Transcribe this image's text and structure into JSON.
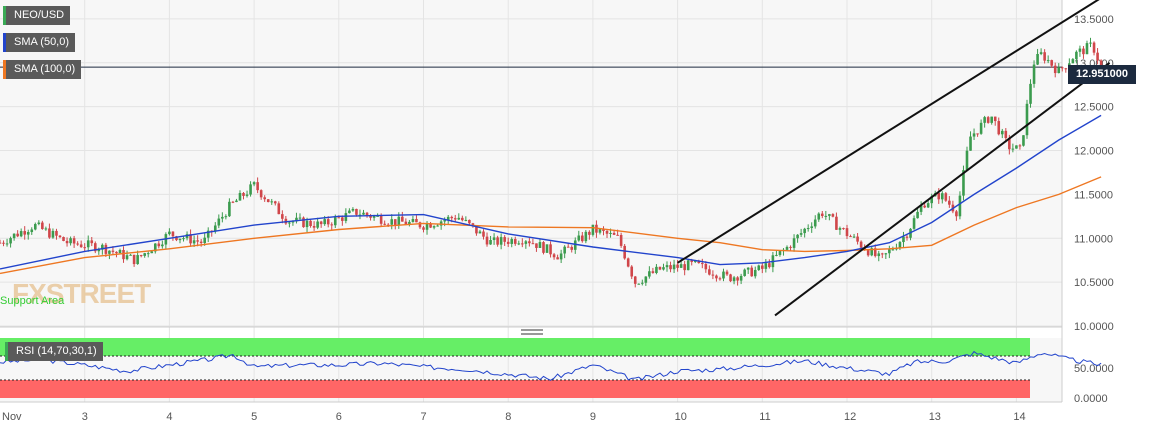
{
  "chart_data": {
    "type": "candlestick",
    "symbol": "NEO/USD",
    "current_price": "12.951000",
    "indicators": [
      {
        "name": "SMA (50,0)",
        "color": "#2244cc"
      },
      {
        "name": "SMA (100,0)",
        "color": "#ee7722"
      }
    ],
    "xlabels": [
      "Nov",
      "3",
      "4",
      "5",
      "6",
      "7",
      "8",
      "9",
      "10",
      "11",
      "12",
      "13",
      "14"
    ],
    "ylabels": [
      "13.5000",
      "13.0000",
      "12.5000",
      "12.0000",
      "11.5000",
      "11.0000",
      "10.5000",
      "10.0000"
    ],
    "ylim": [
      10.0,
      13.75
    ],
    "close_series": [
      {
        "x": 0.0,
        "y": 10.95
      },
      {
        "x": 0.4,
        "y": 11.15
      },
      {
        "x": 0.8,
        "y": 10.95
      },
      {
        "x": 1.2,
        "y": 10.9
      },
      {
        "x": 1.6,
        "y": 10.75
      },
      {
        "x": 2.0,
        "y": 11.05
      },
      {
        "x": 2.4,
        "y": 10.95
      },
      {
        "x": 2.7,
        "y": 11.35
      },
      {
        "x": 3.0,
        "y": 11.6
      },
      {
        "x": 3.4,
        "y": 11.2
      },
      {
        "x": 3.8,
        "y": 11.15
      },
      {
        "x": 4.2,
        "y": 11.3
      },
      {
        "x": 4.6,
        "y": 11.2
      },
      {
        "x": 5.0,
        "y": 11.15
      },
      {
        "x": 5.4,
        "y": 11.25
      },
      {
        "x": 5.8,
        "y": 10.95
      },
      {
        "x": 6.2,
        "y": 11.0
      },
      {
        "x": 6.6,
        "y": 10.8
      },
      {
        "x": 7.0,
        "y": 11.1
      },
      {
        "x": 7.3,
        "y": 11.0
      },
      {
        "x": 7.5,
        "y": 10.5
      },
      {
        "x": 7.8,
        "y": 10.65
      },
      {
        "x": 8.2,
        "y": 10.7
      },
      {
        "x": 8.6,
        "y": 10.55
      },
      {
        "x": 9.0,
        "y": 10.65
      },
      {
        "x": 9.3,
        "y": 10.9
      },
      {
        "x": 9.7,
        "y": 11.3
      },
      {
        "x": 10.0,
        "y": 11.05
      },
      {
        "x": 10.4,
        "y": 10.75
      },
      {
        "x": 10.7,
        "y": 11.05
      },
      {
        "x": 10.9,
        "y": 11.4
      },
      {
        "x": 11.1,
        "y": 11.5
      },
      {
        "x": 11.3,
        "y": 11.3
      },
      {
        "x": 11.45,
        "y": 12.15
      },
      {
        "x": 11.7,
        "y": 12.4
      },
      {
        "x": 11.9,
        "y": 12.05
      },
      {
        "x": 12.05,
        "y": 12.0
      },
      {
        "x": 12.2,
        "y": 13.0
      },
      {
        "x": 12.3,
        "y": 13.1
      },
      {
        "x": 12.5,
        "y": 12.9
      },
      {
        "x": 12.7,
        "y": 13.1
      },
      {
        "x": 12.9,
        "y": 13.2
      },
      {
        "x": 13.0,
        "y": 12.95
      }
    ],
    "sma50": [
      {
        "x": 0.0,
        "y": 10.65
      },
      {
        "x": 1.0,
        "y": 10.85
      },
      {
        "x": 2.0,
        "y": 11.0
      },
      {
        "x": 3.0,
        "y": 11.15
      },
      {
        "x": 4.0,
        "y": 11.25
      },
      {
        "x": 5.0,
        "y": 11.27
      },
      {
        "x": 6.0,
        "y": 11.05
      },
      {
        "x": 7.0,
        "y": 10.9
      },
      {
        "x": 8.0,
        "y": 10.78
      },
      {
        "x": 8.5,
        "y": 10.7
      },
      {
        "x": 9.0,
        "y": 10.72
      },
      {
        "x": 9.5,
        "y": 10.78
      },
      {
        "x": 10.0,
        "y": 10.85
      },
      {
        "x": 10.5,
        "y": 10.95
      },
      {
        "x": 11.0,
        "y": 11.18
      },
      {
        "x": 11.5,
        "y": 11.5
      },
      {
        "x": 12.0,
        "y": 11.8
      },
      {
        "x": 12.5,
        "y": 12.12
      },
      {
        "x": 13.0,
        "y": 12.4
      }
    ],
    "sma100": [
      {
        "x": 0.0,
        "y": 10.6
      },
      {
        "x": 1.0,
        "y": 10.78
      },
      {
        "x": 2.0,
        "y": 10.88
      },
      {
        "x": 3.0,
        "y": 11.0
      },
      {
        "x": 4.0,
        "y": 11.1
      },
      {
        "x": 5.0,
        "y": 11.17
      },
      {
        "x": 6.0,
        "y": 11.13
      },
      {
        "x": 7.0,
        "y": 11.12
      },
      {
        "x": 8.0,
        "y": 11.0
      },
      {
        "x": 8.5,
        "y": 10.95
      },
      {
        "x": 9.0,
        "y": 10.87
      },
      {
        "x": 9.5,
        "y": 10.85
      },
      {
        "x": 10.0,
        "y": 10.86
      },
      {
        "x": 10.5,
        "y": 10.88
      },
      {
        "x": 11.0,
        "y": 10.92
      },
      {
        "x": 11.5,
        "y": 11.15
      },
      {
        "x": 12.0,
        "y": 11.35
      },
      {
        "x": 12.5,
        "y": 11.5
      },
      {
        "x": 13.0,
        "y": 11.7
      }
    ],
    "channel_lines": [
      {
        "from": {
          "x": 8.0,
          "y": 10.72
        },
        "to": {
          "x": 13.1,
          "y": 13.8
        }
      },
      {
        "from": {
          "x": 9.15,
          "y": 10.12
        },
        "to": {
          "x": 13.1,
          "y": 13.0
        }
      }
    ],
    "rsi": {
      "label": "RSI (14,70,30,1)",
      "ylabels": [
        "50.0000",
        "0.0000"
      ],
      "overbought_color": "#66ee66",
      "oversold_color": "#ff6666",
      "values": [
        {
          "x": 0.0,
          "y": 60
        },
        {
          "x": 0.5,
          "y": 64
        },
        {
          "x": 1.0,
          "y": 55
        },
        {
          "x": 1.5,
          "y": 45
        },
        {
          "x": 2.0,
          "y": 55
        },
        {
          "x": 2.5,
          "y": 65
        },
        {
          "x": 2.75,
          "y": 72
        },
        {
          "x": 3.0,
          "y": 52
        },
        {
          "x": 3.5,
          "y": 55
        },
        {
          "x": 4.0,
          "y": 55
        },
        {
          "x": 4.5,
          "y": 58
        },
        {
          "x": 5.0,
          "y": 52
        },
        {
          "x": 5.5,
          "y": 48
        },
        {
          "x": 6.0,
          "y": 40
        },
        {
          "x": 6.5,
          "y": 32
        },
        {
          "x": 7.0,
          "y": 55
        },
        {
          "x": 7.5,
          "y": 30
        },
        {
          "x": 8.0,
          "y": 45
        },
        {
          "x": 8.5,
          "y": 48
        },
        {
          "x": 9.0,
          "y": 55
        },
        {
          "x": 9.5,
          "y": 62
        },
        {
          "x": 10.0,
          "y": 50
        },
        {
          "x": 10.5,
          "y": 40
        },
        {
          "x": 10.8,
          "y": 60
        },
        {
          "x": 11.2,
          "y": 62
        },
        {
          "x": 11.5,
          "y": 75
        },
        {
          "x": 12.0,
          "y": 58
        },
        {
          "x": 12.3,
          "y": 76
        },
        {
          "x": 12.6,
          "y": 65
        },
        {
          "x": 13.0,
          "y": 55
        }
      ]
    }
  },
  "watermark": {
    "text": "FXSTREET",
    "support_label": "Support Area"
  }
}
